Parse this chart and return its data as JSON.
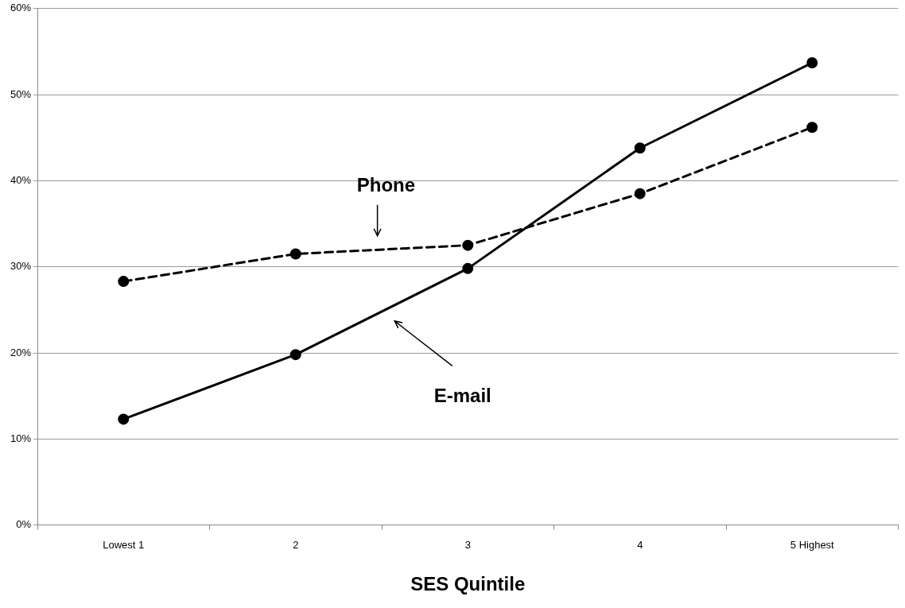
{
  "chart_data": {
    "type": "line",
    "xlabel": "SES Quintile",
    "categories": [
      "Lowest 1",
      "2",
      "3",
      "4",
      "5 Highest"
    ],
    "series": [
      {
        "color": "#000000",
        "line_style": "dashed",
        "values": [
          28.3,
          31.5,
          32.5,
          38.5,
          46.2
        ]
      },
      {
        "color": "#000000",
        "line_style": "solid",
        "values": [
          12.3,
          19.8,
          29.8,
          43.8,
          53.7
        ]
      }
    ],
    "annotations": [
      "Phone",
      "E-mail"
    ],
    "ylim": [
      0,
      60
    ],
    "yticks": [
      {
        "value": 0,
        "label": "0%"
      },
      {
        "value": 10,
        "label": "10%"
      },
      {
        "value": 20,
        "label": "20%"
      },
      {
        "value": 30,
        "label": "30%"
      },
      {
        "value": 40,
        "label": "40%"
      },
      {
        "value": 50,
        "label": "50%"
      },
      {
        "value": 60,
        "label": "60%"
      }
    ],
    "grid": "y",
    "marker": "circle"
  }
}
